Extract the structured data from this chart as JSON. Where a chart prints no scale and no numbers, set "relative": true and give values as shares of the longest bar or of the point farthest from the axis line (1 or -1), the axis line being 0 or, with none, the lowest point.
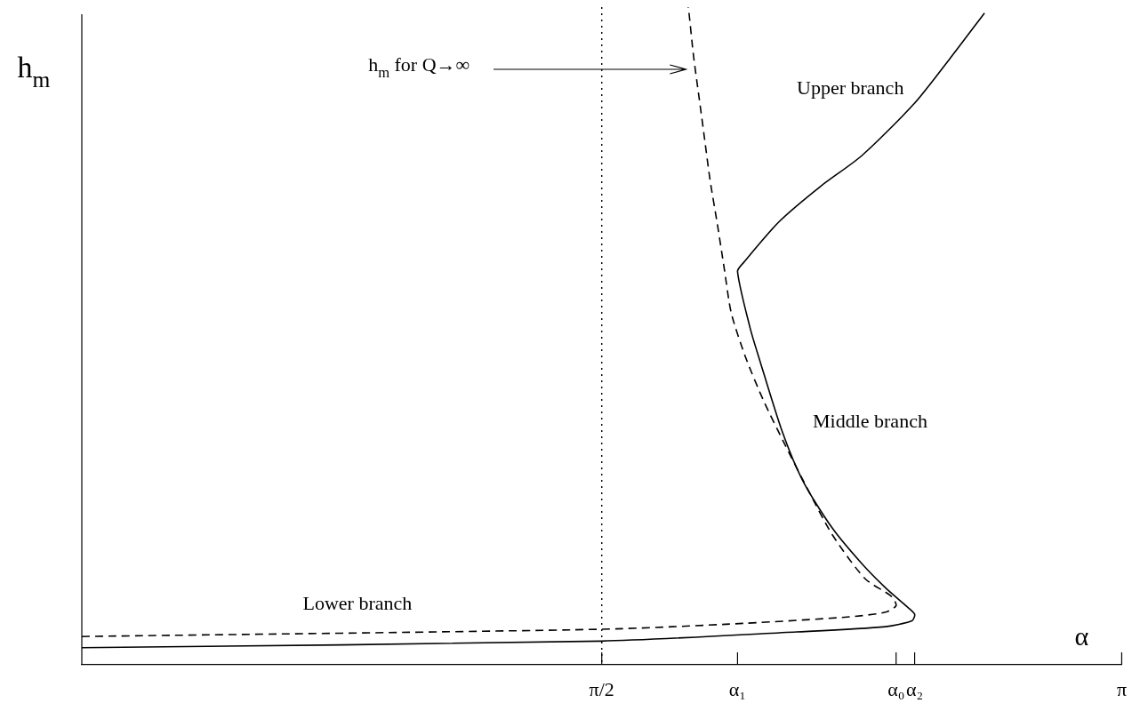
{
  "chart_data": {
    "type": "line",
    "relative": true,
    "xlabel": "α",
    "ylabel": "h$_{m}$",
    "xlim": [
      0,
      3.1416
    ],
    "xticks": [
      {
        "value": 1.5708,
        "label": "π/2"
      },
      {
        "value": 1.981,
        "label": "α₁"
      },
      {
        "value": 2.46,
        "label": "α₀"
      },
      {
        "value": 2.516,
        "label": "α₂"
      },
      {
        "value": 3.1416,
        "label": "π"
      }
    ],
    "marker": "none",
    "grid": false,
    "legend": false,
    "series": [
      {
        "color": "#000000",
        "line_style": "solid",
        "x": [
          0,
          1.569,
          2.16,
          2.428,
          2.508,
          2.516,
          2.489,
          2.428,
          2.356,
          2.267,
          2.179,
          2.115,
          2.045,
          2.019,
          1.981,
          2.0,
          2.107,
          2.233,
          2.356,
          2.516,
          2.623,
          2.727
        ],
        "values": [
          0.026,
          0.036,
          0.05,
          0.058,
          0.067,
          0.077,
          0.09,
          0.117,
          0.154,
          0.208,
          0.279,
          0.356,
          0.468,
          0.512,
          0.598,
          0.612,
          0.674,
          0.728,
          0.774,
          0.854,
          0.922,
          0.991
        ]
      },
      {
        "color": "#000000",
        "line_style": "dashed",
        "x": [
          0,
          1.569,
          2.0,
          2.321,
          2.428,
          2.46,
          2.446,
          2.366,
          2.267,
          2.195,
          2.126,
          2.061,
          2.005,
          1.962,
          1.941,
          1.92,
          1.898,
          1.88,
          1.866,
          1.848,
          1.834,
          1.832
        ],
        "values": [
          0.043,
          0.054,
          0.063,
          0.073,
          0.08,
          0.09,
          0.104,
          0.131,
          0.198,
          0.265,
          0.333,
          0.4,
          0.468,
          0.535,
          0.602,
          0.67,
          0.737,
          0.805,
          0.858,
          0.926,
          0.993,
          1.0
        ]
      }
    ],
    "ref_lines": [
      {
        "axis": "x",
        "value": 1.5708,
        "color": "#000000",
        "line_style": "dotted"
      }
    ],
    "annotations": [
      "h$_{m}$ for Q→∞",
      "Upper branch",
      "Middle branch",
      "Lower branch"
    ]
  }
}
